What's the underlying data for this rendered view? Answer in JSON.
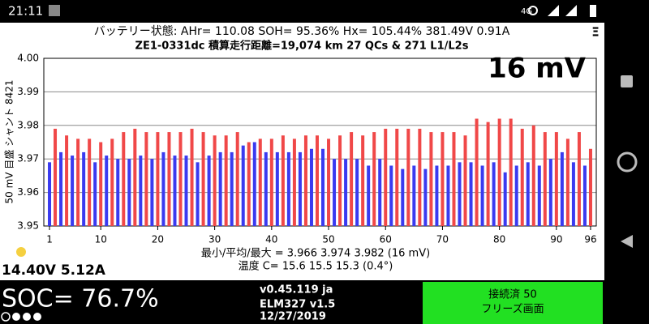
{
  "status_bar": {
    "time": "21:11",
    "network": "4G"
  },
  "header": {
    "line1": "バッテリー状態:  AHr= 110.08  SOH= 95.36%   Hx= 105.44%   381.49V 0.91A",
    "line2": "ZE1-0331dc 積算走行距離=19,074 km  27 QCs & 271 L1/L2s",
    "menu": "Ξ"
  },
  "chart_data": {
    "type": "bar",
    "title": "16 mV",
    "y_label": "50 mV 目盛 シャント 8421",
    "x": [
      1,
      2,
      3,
      4,
      5,
      6,
      7,
      8,
      9,
      10,
      11,
      12,
      13,
      14,
      15,
      16,
      17,
      18,
      19,
      20,
      21,
      22,
      23,
      24,
      25,
      26,
      27,
      28,
      29,
      30,
      31,
      32,
      33,
      34,
      35,
      36,
      37,
      38,
      39,
      40,
      41,
      42,
      43,
      44,
      45,
      46,
      47,
      48,
      49,
      50,
      51,
      52,
      53,
      54,
      55,
      56,
      57,
      58,
      59,
      60,
      61,
      62,
      63,
      64,
      65,
      66,
      67,
      68,
      69,
      70,
      71,
      72,
      73,
      74,
      75,
      76,
      77,
      78,
      79,
      80,
      81,
      82,
      83,
      84,
      85,
      86,
      87,
      88,
      89,
      90,
      91,
      92,
      93,
      94,
      95,
      96
    ],
    "values": [
      3.969,
      3.979,
      3.972,
      3.977,
      3.971,
      3.976,
      3.972,
      3.976,
      3.969,
      3.975,
      3.971,
      3.976,
      3.97,
      3.978,
      3.97,
      3.979,
      3.971,
      3.978,
      3.97,
      3.978,
      3.972,
      3.978,
      3.971,
      3.978,
      3.971,
      3.979,
      3.969,
      3.978,
      3.971,
      3.977,
      3.972,
      3.977,
      3.972,
      3.978,
      3.974,
      3.975,
      3.975,
      3.976,
      3.972,
      3.976,
      3.972,
      3.977,
      3.972,
      3.976,
      3.972,
      3.977,
      3.973,
      3.977,
      3.973,
      3.976,
      3.97,
      3.977,
      3.97,
      3.978,
      3.97,
      3.977,
      3.968,
      3.978,
      3.97,
      3.979,
      3.968,
      3.979,
      3.967,
      3.979,
      3.968,
      3.979,
      3.967,
      3.978,
      3.968,
      3.978,
      3.968,
      3.978,
      3.969,
      3.977,
      3.969,
      3.982,
      3.968,
      3.981,
      3.969,
      3.982,
      3.966,
      3.982,
      3.968,
      3.979,
      3.969,
      3.98,
      3.968,
      3.978,
      3.97,
      3.978,
      3.972,
      3.976,
      3.969,
      3.978,
      3.968,
      3.973
    ],
    "colors": [
      "#3a3af0",
      "#f04848"
    ],
    "xlim": [
      0,
      97
    ],
    "xticks": [
      1,
      10,
      20,
      30,
      40,
      50,
      60,
      70,
      80,
      90,
      96
    ],
    "ylim": [
      3.95,
      4.0
    ],
    "yticks": [
      3.95,
      3.96,
      3.97,
      3.98,
      3.99,
      {
        "value": 4.0,
        "label": "4.00"
      }
    ],
    "grid": true,
    "stats": "最小/平均/最大 = 3.966 3.974 3.982 (16 mV)",
    "temps": "温度 C= 15.6  15.5  15.3  (0.4°)"
  },
  "pack": "14.40V 5.12A",
  "footer": {
    "soc": "SOC= 76.7%",
    "version": "v0.45.119 ja",
    "adapter": "ELM327 v1.5",
    "date": "12/27/2019",
    "status1": "接続済 50",
    "status2": "フリーズ画面"
  }
}
